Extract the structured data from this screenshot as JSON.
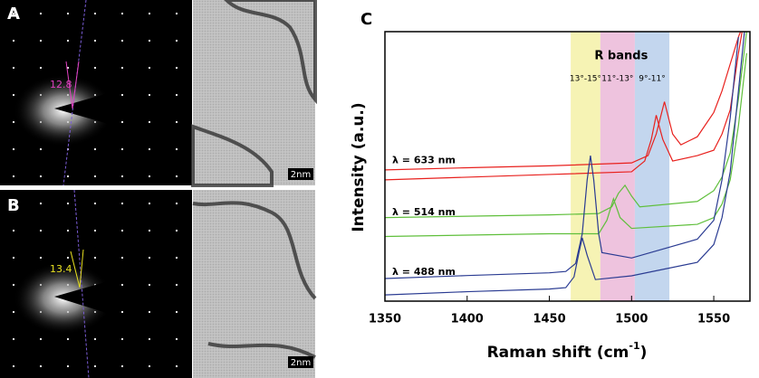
{
  "panels": [
    {
      "label": "A",
      "angle": "12.8",
      "scale_bar": "2nm"
    },
    {
      "label": "B",
      "angle": "13.4",
      "scale_bar": "2nm"
    }
  ],
  "chart_data": {
    "type": "line",
    "label": "C",
    "ylabel": "Intensity (a.u.)",
    "xlabel": {
      "text": "Raman shift (cm",
      "sup": "-1",
      "end": ")"
    },
    "xlim": [
      1350,
      1572
    ],
    "ylim": [
      0,
      100
    ],
    "xticks": [
      1350,
      1400,
      1450,
      1500,
      1550
    ],
    "band_title": "R bands",
    "bands": [
      {
        "label": "13°-15°",
        "range": [
          1463,
          1481
        ],
        "color": "#f6f3b4"
      },
      {
        "label": "11°-13°",
        "range": [
          1481,
          1502
        ],
        "color": "#eec3de"
      },
      {
        "label": "9°-11°",
        "range": [
          1502,
          1523
        ],
        "color": "#c3d6ee"
      }
    ],
    "series": [
      {
        "name": "λ = 633 nm",
        "color": "#e8201d",
        "curves": [
          {
            "x": [
              1350,
              1400,
              1450,
              1500,
              1510,
              1515,
              1520,
              1525,
              1530,
              1540,
              1550,
              1555,
              1560,
              1565,
              1570
            ],
            "values": [
              48.7,
              49.5,
              50.2,
              51.3,
              54,
              62,
              74,
              62,
              58,
              61,
              70,
              78,
              88,
              98,
              106
            ]
          },
          {
            "x": [
              1350,
              1400,
              1450,
              1500,
              1508,
              1512,
              1515,
              1519,
              1525,
              1540,
              1550,
              1555,
              1560,
              1565,
              1570
            ],
            "values": [
              45,
              46,
              47,
              48,
              52,
              60,
              69,
              60,
              52,
              54,
              56,
              62,
              71,
              92,
              110
            ]
          }
        ]
      },
      {
        "name": "λ = 514 nm",
        "color": "#5fbf3b",
        "curves": [
          {
            "x": [
              1350,
              1400,
              1450,
              1480,
              1488,
              1492,
              1496,
              1500,
              1505,
              1540,
              1550,
              1555,
              1560,
              1565,
              1570
            ],
            "values": [
              31,
              31.5,
              32,
              32.5,
              35,
              40,
              43,
              39,
              35,
              37,
              41,
              46,
              55,
              75,
              100
            ]
          },
          {
            "x": [
              1350,
              1400,
              1450,
              1480,
              1485,
              1489,
              1493,
              1500,
              1540,
              1550,
              1555,
              1560,
              1565,
              1570
            ],
            "values": [
              24,
              24.5,
              25,
              25,
              30,
              38,
              31,
              27,
              28.5,
              31,
              36,
              45,
              65,
              92
            ]
          }
        ]
      },
      {
        "name": "λ = 488 nm",
        "color": "#2a3b92",
        "curves": [
          {
            "x": [
              1350,
              1400,
              1450,
              1460,
              1466,
              1470,
              1473,
              1475,
              1477,
              1480,
              1482,
              1500,
              1540,
              1550,
              1555,
              1560,
              1565
            ],
            "values": [
              8.4,
              9.5,
              10.5,
              11,
              14,
              25,
              45,
              54,
              45,
              25,
              18,
              16,
              23,
              30,
              45,
              68,
              98
            ]
          },
          {
            "x": [
              1350,
              1400,
              1450,
              1460,
              1465,
              1468,
              1470,
              1473,
              1478,
              1500,
              1540,
              1550,
              1555,
              1560,
              1565,
              1570
            ],
            "values": [
              2.3,
              3.5,
              4.5,
              5,
              9,
              18,
              23.5,
              17,
              8,
              9.4,
              14.4,
              21,
              31,
              48,
              78,
              108
            ]
          }
        ]
      }
    ]
  }
}
